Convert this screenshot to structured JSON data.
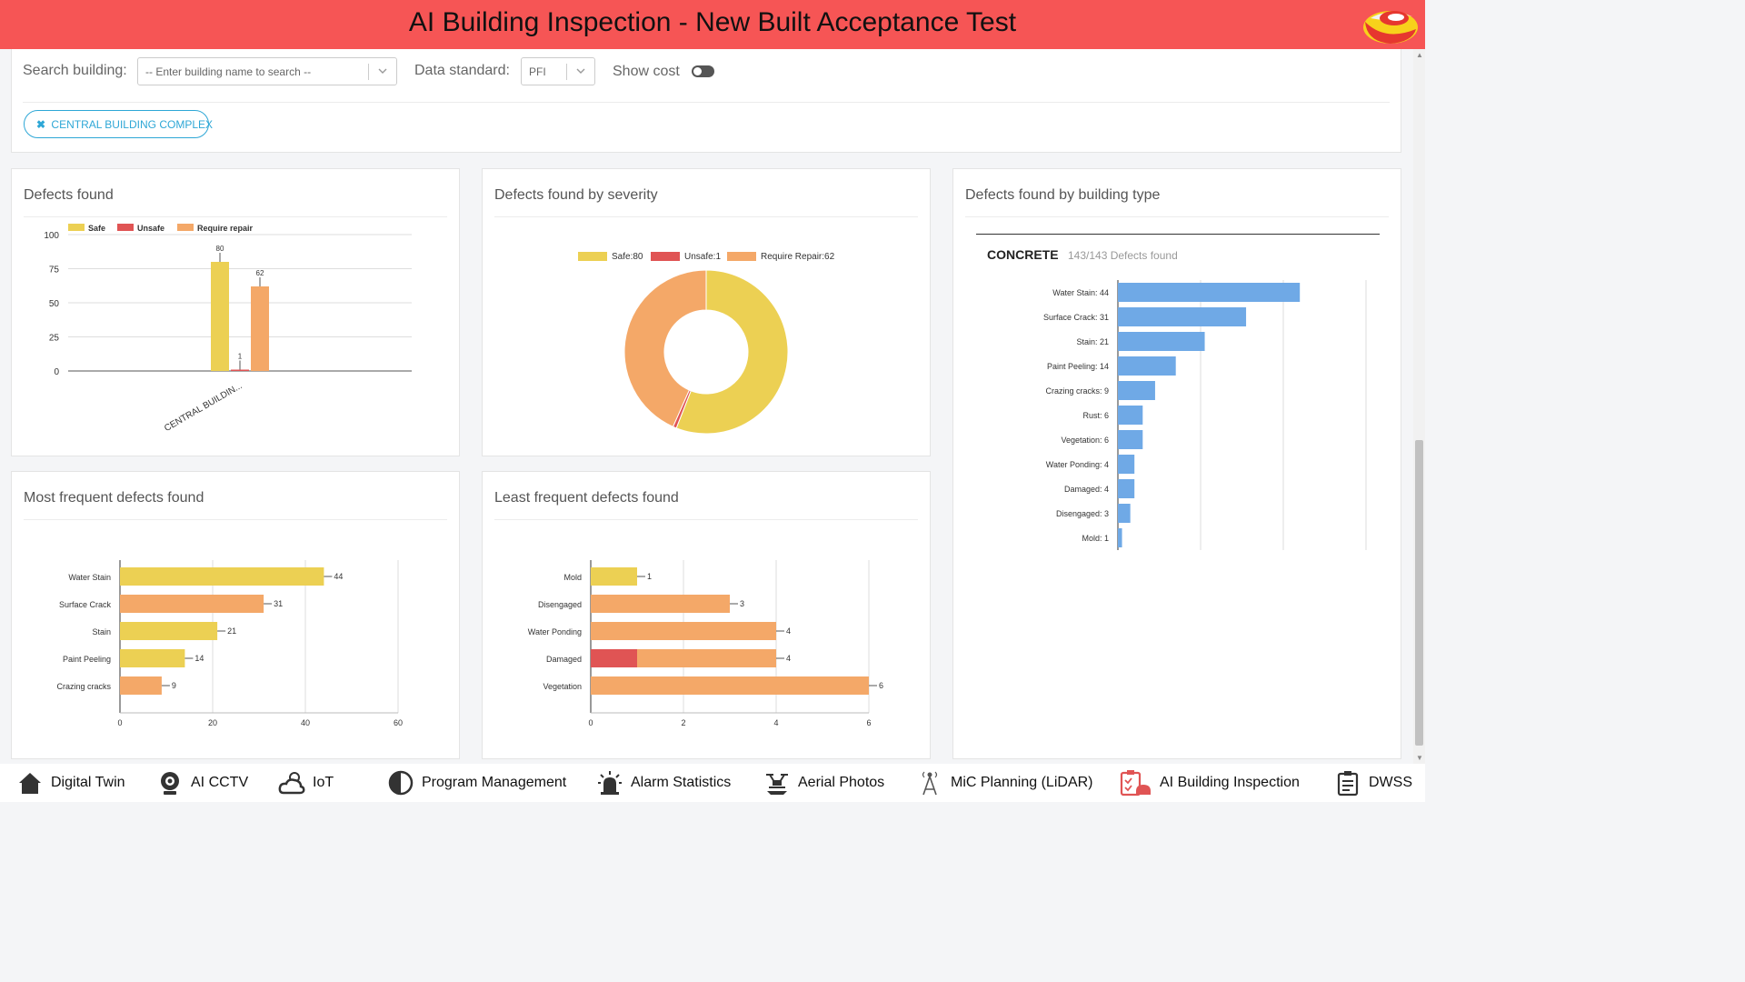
{
  "header": {
    "title": "AI Building Inspection - New Built Acceptance Test"
  },
  "filters": {
    "search_label": "Search building:",
    "search_placeholder": "-- Enter building name to search --",
    "standard_label": "Data standard:",
    "standard_value": "PFI",
    "show_cost_label": "Show cost",
    "show_cost_on": false,
    "chip_label": "CENTRAL BUILDING COMPLEX"
  },
  "cards": {
    "defects_found": "Defects found",
    "by_severity": "Defects found by severity",
    "by_building_type": "Defects found by building type",
    "most_frequent": "Most frequent defects found",
    "least_frequent": "Least frequent defects found"
  },
  "building_type": {
    "type": "CONCRETE",
    "summary": "143/143 Defects found"
  },
  "colors": {
    "safe": "#ecd053",
    "unsafe": "#e05454",
    "repair": "#f4a868",
    "blue": "#6fa9e6",
    "header": "#f65555"
  },
  "chart_data": [
    {
      "id": "defects_found",
      "type": "bar",
      "categories": [
        "CENTRAL BUILDIN..."
      ],
      "series": [
        {
          "name": "Safe",
          "values": [
            80
          ]
        },
        {
          "name": "Unsafe",
          "values": [
            1
          ]
        },
        {
          "name": "Require repair",
          "values": [
            62
          ]
        }
      ],
      "ylim": [
        0,
        100
      ],
      "yticks": [
        0,
        25,
        50,
        75,
        100
      ],
      "legend": "top-left"
    },
    {
      "id": "by_severity",
      "type": "pie",
      "labels": [
        "Safe:80",
        "Unsafe:1",
        "Require Repair:62"
      ],
      "values": [
        80,
        1,
        62
      ],
      "donut": true,
      "legend": "top"
    },
    {
      "id": "by_building_type",
      "type": "bar",
      "orientation": "horizontal",
      "categories": [
        "Water Stain: 44",
        "Surface Crack: 31",
        "Stain: 21",
        "Paint Peeling: 14",
        "Crazing cracks: 9",
        "Rust: 6",
        "Vegetation: 6",
        "Water Ponding: 4",
        "Damaged: 4",
        "Disengaged: 3",
        "Mold: 1"
      ],
      "values": [
        44,
        31,
        21,
        14,
        9,
        6,
        6,
        4,
        4,
        3,
        1
      ],
      "xlim": [
        0,
        60
      ]
    },
    {
      "id": "most_frequent",
      "type": "bar",
      "orientation": "horizontal",
      "categories": [
        "Water Stain",
        "Surface Crack",
        "Stain",
        "Paint Peeling",
        "Crazing cracks"
      ],
      "stacks": [
        [
          {
            "kind": "safe",
            "value": 44
          }
        ],
        [
          {
            "kind": "repair",
            "value": 31
          }
        ],
        [
          {
            "kind": "safe",
            "value": 21
          }
        ],
        [
          {
            "kind": "safe",
            "value": 14
          }
        ],
        [
          {
            "kind": "repair",
            "value": 9
          }
        ]
      ],
      "totals": [
        44,
        31,
        21,
        14,
        9
      ],
      "xlim": [
        0,
        60
      ],
      "xticks": [
        0,
        20,
        40,
        60
      ]
    },
    {
      "id": "least_frequent",
      "type": "bar",
      "orientation": "horizontal",
      "categories": [
        "Mold",
        "Disengaged",
        "Water Ponding",
        "Damaged",
        "Vegetation"
      ],
      "stacks": [
        [
          {
            "kind": "safe",
            "value": 1
          }
        ],
        [
          {
            "kind": "repair",
            "value": 3
          }
        ],
        [
          {
            "kind": "repair",
            "value": 4
          }
        ],
        [
          {
            "kind": "unsafe",
            "value": 1
          },
          {
            "kind": "repair",
            "value": 3
          }
        ],
        [
          {
            "kind": "repair",
            "value": 6
          }
        ]
      ],
      "totals": [
        1,
        3,
        4,
        4,
        6
      ],
      "xlim": [
        0,
        6
      ],
      "xticks": [
        0,
        2,
        4,
        6
      ]
    }
  ],
  "bottom_nav": [
    {
      "label": "Digital Twin",
      "icon": "house-icon"
    },
    {
      "label": "AI CCTV",
      "icon": "webcam-icon"
    },
    {
      "label": "IoT",
      "icon": "cloud-sun-icon"
    },
    {
      "label": "Program Management",
      "icon": "half-circle-icon"
    },
    {
      "label": "Alarm Statistics",
      "icon": "alarm-light-icon"
    },
    {
      "label": "Aerial Photos",
      "icon": "drone-icon"
    },
    {
      "label": "MiC Planning (LiDAR)",
      "icon": "lidar-icon"
    },
    {
      "label": "AI Building Inspection",
      "icon": "clipboard-inspection-icon"
    },
    {
      "label": "DWSS",
      "icon": "clipboard-icon"
    }
  ]
}
